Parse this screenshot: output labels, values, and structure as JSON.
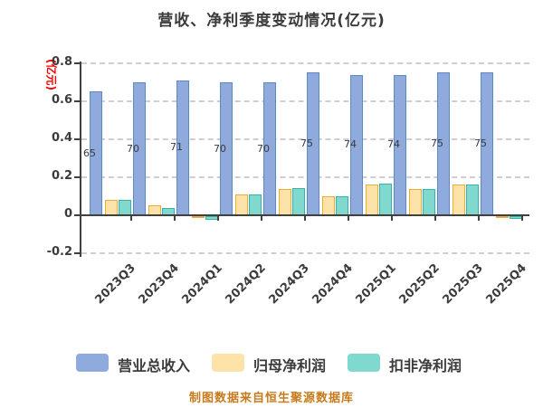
{
  "title": "营收、净利季度变动情况(亿元)",
  "y_axis_unit": "(亿元)",
  "source_note": "制图数据来自恒生聚源数据库",
  "colors": {
    "revenue_fill": "#8FAADC",
    "revenue_border": "#5E86C8",
    "net_profit_fill": "#FDE3A7",
    "net_profit_border": "#EDAA3C",
    "non_gaap_fill": "#7FD9CE",
    "non_gaap_border": "#35B5A8",
    "grid": "#CFCFCF",
    "axis": "#404040",
    "text": "#3B3B3B",
    "bar_label_text": "#3A3A3A",
    "y_axis_unit_text": "#FF0000",
    "source_note_text": "#C87B1B"
  },
  "chart_data": {
    "type": "bar",
    "title": "营收、净利季度变动情况(亿元)",
    "ylabel": "(亿元)",
    "categories": [
      "2023Q3",
      "2023Q4",
      "2024Q1",
      "2024Q2",
      "2024Q3",
      "2024Q4",
      "2025Q1",
      "2025Q2",
      "2025Q3",
      "2025Q4"
    ],
    "series": [
      {
        "name": "营业总收入",
        "color": "#8FAADC",
        "values": [
          0.65,
          0.7,
          0.71,
          0.7,
          0.7,
          0.75,
          0.74,
          0.74,
          0.75,
          0.75
        ],
        "bar_labels": [
          "65",
          "70",
          "71",
          "70",
          "70",
          "75",
          "74",
          "74",
          "75",
          "75"
        ]
      },
      {
        "name": "归母净利润",
        "color": "#FDE3A7",
        "values": [
          0.08,
          0.05,
          -0.01,
          0.11,
          0.14,
          0.1,
          0.16,
          0.14,
          0.16,
          -0.01
        ]
      },
      {
        "name": "扣非净利润",
        "color": "#7FD9CE",
        "values": [
          0.08,
          0.04,
          -0.02,
          0.11,
          0.145,
          0.1,
          0.165,
          0.14,
          0.16,
          -0.015
        ]
      }
    ],
    "ylim": [
      -0.2,
      0.8
    ],
    "yticks": [
      "0.8",
      "0.6",
      "0.4",
      "0.2",
      "0",
      "-0.2"
    ],
    "ytick_values": [
      0.8,
      0.6,
      0.4,
      0.2,
      0,
      -0.2
    ],
    "grid": "horizontal dashed",
    "legend_position": "bottom"
  },
  "legend": {
    "items": [
      "营业总收入",
      "归母净利润",
      "扣非净利润"
    ]
  }
}
